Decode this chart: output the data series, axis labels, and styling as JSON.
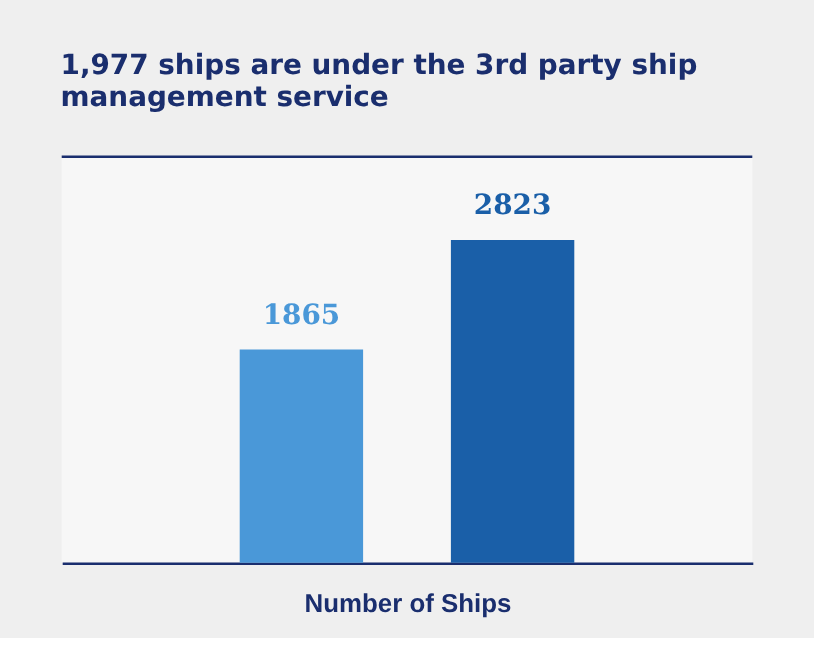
{
  "chart_data": {
    "type": "bar",
    "title": [
      "1,977 ships are under the 3rd party ship",
      "management service"
    ],
    "xlabel": "Number of Ships",
    "categories": [
      null,
      null
    ],
    "values": [
      1865,
      2823
    ],
    "colors": [
      "#4a98d8",
      "#1a5fa8"
    ],
    "ylim": [
      0,
      3550
    ],
    "tick_labels": false,
    "data_labels": true,
    "grid": false
  }
}
